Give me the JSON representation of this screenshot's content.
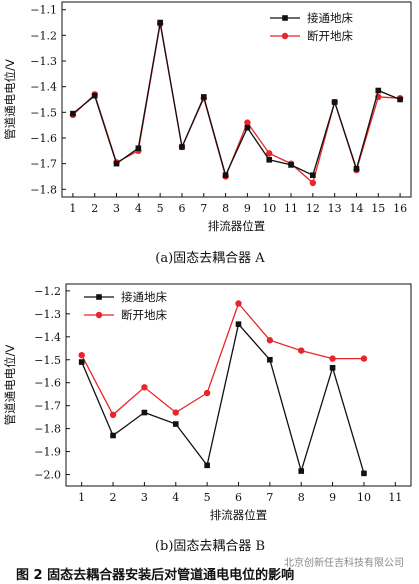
{
  "figure_caption": "图 2   固态去耦合器安装后对管道通电电位的影响",
  "watermark": "北京创新任吉科技有限公司",
  "colors": {
    "series_a": "#111111",
    "series_b": "#e8262a"
  },
  "chart_data": [
    {
      "type": "line",
      "subtitle": "(a)固态去耦合器 A",
      "xlabel": "排流器位置",
      "ylabel": "管道通电电位/V",
      "x": [
        1,
        2,
        3,
        4,
        5,
        6,
        7,
        8,
        9,
        10,
        11,
        12,
        13,
        14,
        15,
        16
      ],
      "xlim": [
        0.5,
        16.5
      ],
      "ylim": [
        -1.83,
        -1.07
      ],
      "yticks": [
        -1.1,
        -1.2,
        -1.3,
        -1.4,
        -1.5,
        -1.6,
        -1.7,
        -1.8
      ],
      "legend_position": "top-right",
      "series": [
        {
          "name": "接通地床",
          "marker": "square",
          "color": "#111111",
          "values": [
            -1.505,
            -1.435,
            -1.7,
            -1.64,
            -1.15,
            -1.635,
            -1.44,
            -1.745,
            -1.56,
            -1.685,
            -1.705,
            -1.745,
            -1.46,
            -1.72,
            -1.415,
            -1.45
          ]
        },
        {
          "name": "断开地床",
          "marker": "circle",
          "color": "#e8262a",
          "values": [
            -1.51,
            -1.43,
            -1.695,
            -1.65,
            -1.155,
            -1.635,
            -1.445,
            -1.75,
            -1.54,
            -1.66,
            -1.7,
            -1.775,
            -1.46,
            -1.725,
            -1.44,
            -1.445
          ]
        }
      ]
    },
    {
      "type": "line",
      "subtitle": "(b)固态去耦合器 B",
      "xlabel": "排流器位置",
      "ylabel": "管道通电电位/V",
      "x": [
        1,
        2,
        3,
        4,
        5,
        6,
        7,
        8,
        9,
        10
      ],
      "xticks": [
        1,
        2,
        3,
        4,
        5,
        6,
        7,
        8,
        9,
        10,
        11
      ],
      "xlim": [
        0.5,
        11.5
      ],
      "ylim": [
        -2.05,
        -1.17
      ],
      "yticks": [
        -1.2,
        -1.3,
        -1.4,
        -1.5,
        -1.6,
        -1.7,
        -1.8,
        -1.9,
        -2.0
      ],
      "legend_position": "top-left",
      "series": [
        {
          "name": "接通地床",
          "marker": "square",
          "color": "#111111",
          "values": [
            -1.51,
            -1.83,
            -1.73,
            -1.78,
            -1.96,
            -1.345,
            -1.5,
            -1.985,
            -1.535,
            -1.995
          ]
        },
        {
          "name": "断开地床",
          "marker": "circle",
          "color": "#e8262a",
          "values": [
            -1.48,
            -1.74,
            -1.62,
            -1.73,
            -1.645,
            -1.255,
            -1.415,
            -1.46,
            -1.495,
            -1.495
          ]
        }
      ]
    }
  ]
}
